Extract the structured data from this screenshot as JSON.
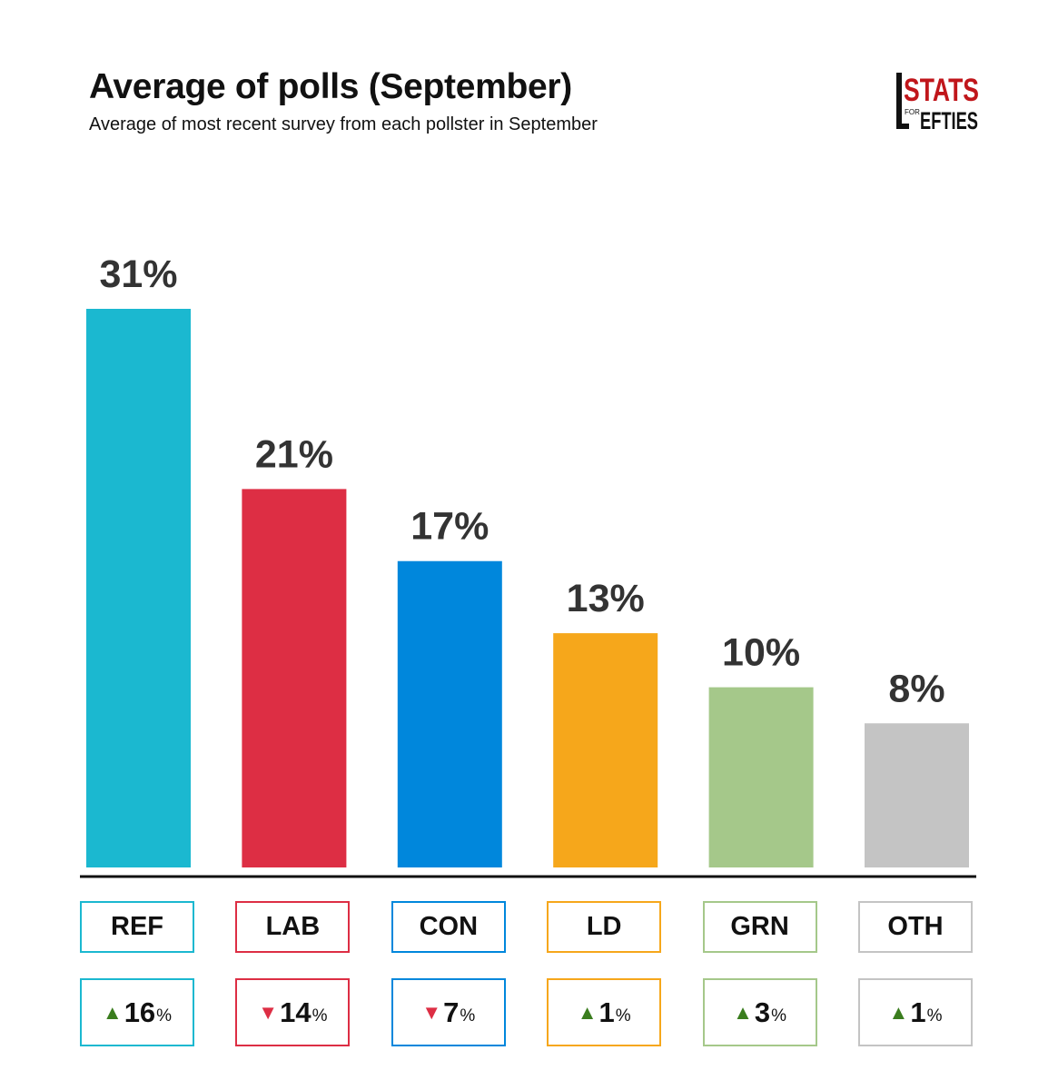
{
  "title": "Average of polls (September)",
  "subtitle": "Average of most recent survey from each pollster in September",
  "logo": {
    "line1": "STATS",
    "small": "FOR",
    "line2": "EFTIES",
    "initial": "L"
  },
  "chart_data": {
    "type": "bar",
    "title": "Average of polls (September)",
    "subtitle": "Average of most recent survey from each pollster in September",
    "categories": [
      "REF",
      "LAB",
      "CON",
      "LD",
      "GRN",
      "OTH"
    ],
    "values": [
      31,
      21,
      17,
      13,
      10,
      8
    ],
    "value_labels": [
      "31%",
      "21%",
      "17%",
      "13%",
      "10%",
      "8%"
    ],
    "changes": [
      {
        "direction": "up",
        "arrow": "▲",
        "value": "16",
        "unit": "%"
      },
      {
        "direction": "down",
        "arrow": "▼",
        "value": "14",
        "unit": "%"
      },
      {
        "direction": "down",
        "arrow": "▼",
        "value": "7",
        "unit": "%"
      },
      {
        "direction": "up",
        "arrow": "▲",
        "value": "1",
        "unit": "%"
      },
      {
        "direction": "up",
        "arrow": "▲",
        "value": "3",
        "unit": "%"
      },
      {
        "direction": "up",
        "arrow": "▲",
        "value": "1",
        "unit": "%"
      }
    ],
    "colors": [
      "#1bb8d0",
      "#dd2e44",
      "#0087dc",
      "#f6a71b",
      "#a5c88a",
      "#c4c4c4"
    ],
    "up_color": "#3a7d1e",
    "down_color": "#dd2e44",
    "ylim": [
      0,
      31
    ],
    "xlabel": "",
    "ylabel": ""
  }
}
